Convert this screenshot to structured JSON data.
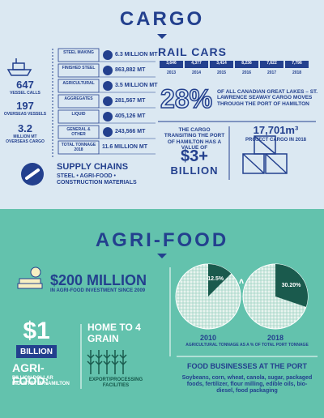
{
  "cargo": {
    "title": "CARGO",
    "stats": [
      {
        "value": "647",
        "label": "VESSEL CALLS"
      },
      {
        "value": "197",
        "label": "OVERSEAS VESSELS"
      },
      {
        "value": "3.2",
        "label": "MILLION MT OVERSEAS CARGO"
      }
    ],
    "commodities": [
      {
        "name": "STEEL MAKING",
        "amount": "6.3 MILLION MT"
      },
      {
        "name": "FINISHED STEEL",
        "amount": "863,882 MT"
      },
      {
        "name": "AGRICULTURAL",
        "amount": "3.5 MILLION MT"
      },
      {
        "name": "AGGREGATES",
        "amount": "281,567 MT"
      },
      {
        "name": "LIQUID",
        "amount": "405,126 MT"
      },
      {
        "name": "GENERAL & OTHER",
        "amount": "243,566 MT"
      }
    ],
    "total": {
      "name": "TOTAL TONNAGE 2018",
      "amount": "11.6 MILLION MT"
    },
    "supply_chains": {
      "title": "SUPPLY CHAINS",
      "text": "STEEL • AGRI-FOOD • CONSTRUCTION MATERIALS"
    },
    "rail_cars": {
      "title": "RAIL CARS",
      "counts": [
        "3,646",
        "4,377",
        "3,414",
        "8,236",
        "7,622",
        "7,796"
      ],
      "years": [
        "2013",
        "2014",
        "2015",
        "2016",
        "2017",
        "2018"
      ]
    },
    "seaway": {
      "percent": "28%",
      "text": "OF ALL CANADIAN GREAT LAKES – ST. LAWRENCE SEAWAY CARGO MOVES THROUGH THE PORT OF HAMILTON"
    },
    "value": {
      "text": "THE CARGO TRANSITING THE PORT OF HAMILTON HAS A VALUE OF",
      "amount": "$3+",
      "unit": "BILLION"
    },
    "project": {
      "amount": "17,701m³",
      "text": "PROJECT CARGO IN 2018"
    }
  },
  "agri_food": {
    "title": "AGRI-FOOD",
    "investment": {
      "amount": "$200 MILLION",
      "text": "IN AGRI-FOOD INVESTMENT SINCE 2009"
    },
    "industry": {
      "amount": "$1",
      "unit": "BILLION",
      "title": "AGRI-FOOD:",
      "text": "BILLION DOLLAR INDUSTRY IN HAMILTON"
    },
    "grain": {
      "title": "HOME TO 4 GRAIN",
      "text": "EXPORT/PROCESSING FACILITIES"
    },
    "businesses": {
      "title": "FOOD BUSINESSES AT THE PORT",
      "text": "Soybeans, corn, wheat, canola, sugar, packaged foods, fertilizer, flour milling, edible oils, bio-diesel, food packaging"
    }
  },
  "chart_data": {
    "type": "pie",
    "categories": [
      "2010",
      "2018"
    ],
    "values": [
      12.5,
      30.2
    ],
    "value_labels": [
      "12.5%",
      "30.20%"
    ],
    "legend": "AGRICULTURAL TONNAGE AS A % OF TOTAL PORT TONNAGE",
    "color": "#1a5a4d"
  }
}
